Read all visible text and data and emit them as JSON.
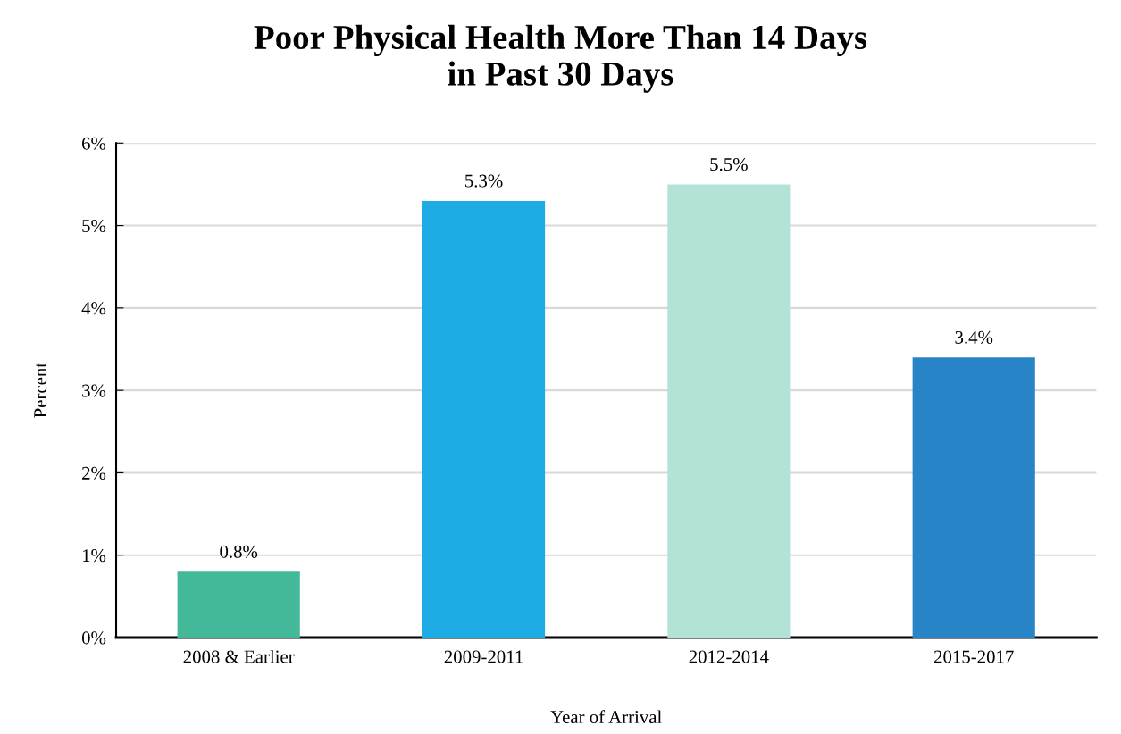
{
  "chart_data": {
    "type": "bar",
    "title": "Poor Physical Health More Than 14 Days\nin Past 30 Days",
    "xlabel": "Year of Arrival",
    "ylabel": "Percent",
    "categories": [
      "2008 & Earlier",
      "2009-2011",
      "2012-2014",
      "2015-2017"
    ],
    "values": [
      0.8,
      5.3,
      5.5,
      3.4
    ],
    "colors": [
      "#43b999",
      "#1fabe3",
      "#b3e3d7",
      "#2784c7"
    ],
    "value_labels": [
      "0.8%",
      "5.3%",
      "5.5%",
      "3.4%"
    ],
    "ylim": [
      0,
      6
    ],
    "yticks": [
      {
        "value": 0,
        "label": "0%"
      },
      {
        "value": 1,
        "label": "1%"
      },
      {
        "value": 2,
        "label": "2%"
      },
      {
        "value": 3,
        "label": "3%"
      },
      {
        "value": 4,
        "label": "4%"
      },
      {
        "value": 5,
        "label": "5%"
      },
      {
        "value": 6,
        "label": "6%"
      }
    ],
    "grid": "y",
    "legend": false
  }
}
